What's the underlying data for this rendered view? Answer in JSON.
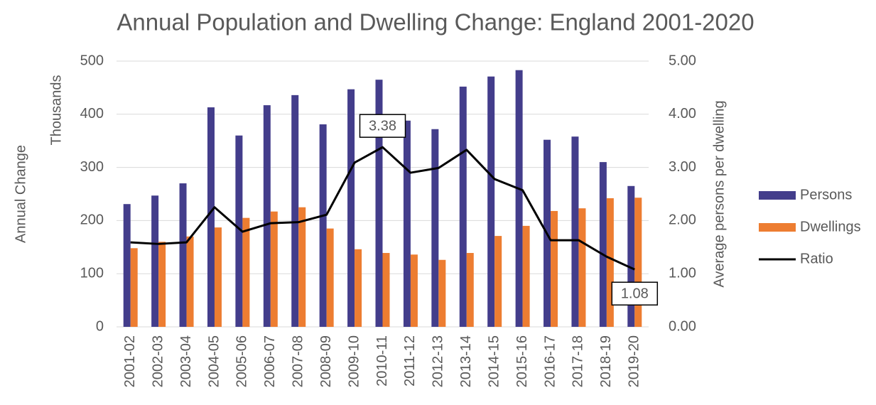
{
  "chart_data": {
    "type": "bar_line",
    "title": "Annual Population and Dwelling Change: England 2001-2020",
    "ylabel": "Annual Change",
    "yunit_label": "Thousands",
    "y2label": "Average persons per dwelling",
    "categories": [
      "2001-02",
      "2002-03",
      "2003-04",
      "2004-05",
      "2005-06",
      "2006-07",
      "2007-08",
      "2008-09",
      "2009-10",
      "2010-11",
      "2011-12",
      "2012-13",
      "2013-14",
      "2014-15",
      "2015-16",
      "2016-17",
      "2017-18",
      "2018-19",
      "2019-20"
    ],
    "series": [
      {
        "name": "Persons",
        "type": "bar",
        "color": "#433d8b",
        "values": [
          231,
          247,
          270,
          413,
          360,
          417,
          436,
          381,
          447,
          465,
          388,
          372,
          452,
          471,
          483,
          352,
          358,
          310,
          265
        ]
      },
      {
        "name": "Dwellings",
        "type": "bar",
        "color": "#ed7d31",
        "values": [
          148,
          160,
          170,
          187,
          205,
          217,
          225,
          185,
          146,
          139,
          136,
          126,
          139,
          171,
          190,
          218,
          223,
          242,
          243
        ]
      },
      {
        "name": "Ratio",
        "type": "line",
        "axis": "y2",
        "color": "#000000",
        "values": [
          1.59,
          1.56,
          1.59,
          2.25,
          1.79,
          1.95,
          1.97,
          2.11,
          3.09,
          3.38,
          2.9,
          2.99,
          3.33,
          2.78,
          2.57,
          1.63,
          1.63,
          1.32,
          1.08
        ],
        "value_labels": [
          null,
          null,
          null,
          null,
          null,
          null,
          null,
          null,
          null,
          "3.38",
          null,
          null,
          null,
          null,
          null,
          null,
          null,
          null,
          "1.08"
        ]
      }
    ],
    "ylim": [
      0,
      500
    ],
    "yticks": [
      0,
      100,
      200,
      300,
      400,
      500
    ],
    "y2lim": [
      0,
      5
    ],
    "y2ticks": [
      {
        "value": 0,
        "label": "0.00"
      },
      {
        "value": 1,
        "label": "1.00"
      },
      {
        "value": 2,
        "label": "2.00"
      },
      {
        "value": 3,
        "label": "3.00"
      },
      {
        "value": 4,
        "label": "4.00"
      },
      {
        "value": 5,
        "label": "5.00"
      }
    ],
    "grid": true,
    "legend": "right"
  }
}
